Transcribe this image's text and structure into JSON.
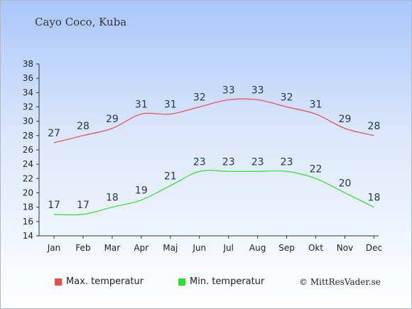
{
  "title": "Cayo Coco, Kuba",
  "credit": "© MittResVader.se",
  "chart_data": {
    "type": "line",
    "categories": [
      "Jan",
      "Feb",
      "Mar",
      "Apr",
      "Maj",
      "Jun",
      "Jul",
      "Aug",
      "Sep",
      "Okt",
      "Nov",
      "Dec"
    ],
    "series": [
      {
        "name": "Max. temperatur",
        "color": "#e84c4c",
        "values": [
          27,
          28,
          29,
          31,
          31,
          32,
          33,
          33,
          32,
          31,
          29,
          28
        ]
      },
      {
        "name": "Min. temperatur",
        "color": "#2de02d",
        "values": [
          17,
          17,
          18,
          19,
          21,
          23,
          23,
          23,
          23,
          22,
          20,
          18
        ]
      }
    ],
    "ylim": [
      14,
      38
    ],
    "yticks": [
      14,
      16,
      18,
      20,
      22,
      24,
      26,
      28,
      30,
      32,
      34,
      36,
      38
    ],
    "grid": false,
    "legend": "bottom-left"
  }
}
